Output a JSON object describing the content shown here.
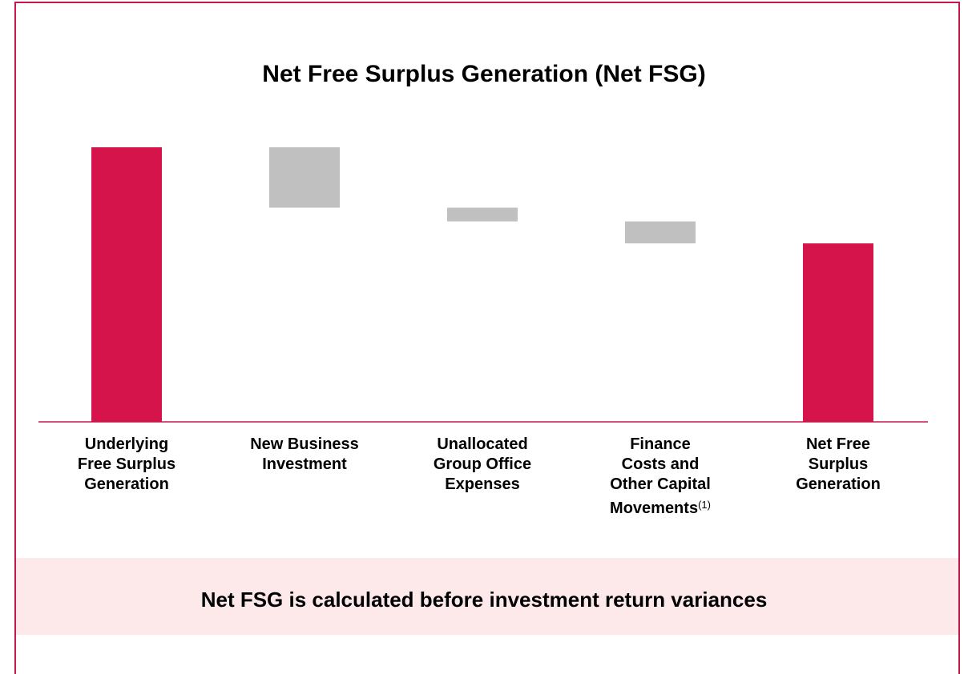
{
  "chart_data": {
    "type": "waterfall",
    "title": "Net Free Surplus Generation (Net FSG)",
    "categories": [
      "Underlying\nFree Surplus\nGeneration",
      "New Business\nInvestment",
      "Unallocated\nGroup Office\nExpenses",
      "Finance\nCosts and\nOther Capital\nMovements",
      "Net Free\nSurplus\nGeneration"
    ],
    "footnote_marker": {
      "category": 3,
      "text": "(1)"
    },
    "measures": [
      "absolute",
      "relative",
      "relative",
      "relative",
      "total"
    ],
    "values": [
      100,
      -22,
      -5,
      -8,
      65
    ],
    "colors": {
      "absolute": "#d4144a",
      "relative": "#c0c0c0",
      "total": "#d4144a"
    },
    "ylim": [
      0,
      100
    ],
    "note": "Net FSG is calculated before investment return variances"
  }
}
